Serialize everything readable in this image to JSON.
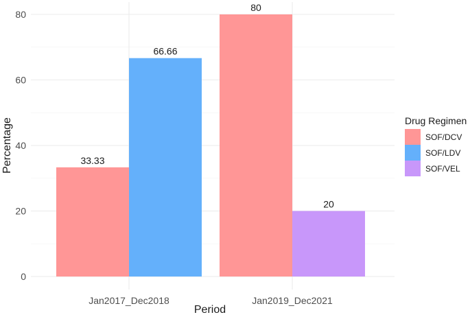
{
  "chart_data": {
    "type": "bar",
    "categories": [
      "Jan2017_Dec2018",
      "Jan2019_Dec2021"
    ],
    "series": [
      {
        "name": "SOF/DCV",
        "values": [
          33.33,
          80
        ],
        "labels": [
          "33.33",
          "80"
        ],
        "color": "#ff9696"
      },
      {
        "name": "SOF/LDV",
        "values": [
          66.66,
          null
        ],
        "labels": [
          "66.66",
          ""
        ],
        "color": "#64b0fb"
      },
      {
        "name": "SOF/VEL",
        "values": [
          null,
          20
        ],
        "labels": [
          "",
          "20"
        ],
        "color": "#c897fa"
      }
    ],
    "title": "",
    "xlabel": "Period",
    "ylabel": "Percentage",
    "ylim": [
      0,
      80
    ],
    "yticks": [
      0,
      20,
      40,
      60,
      80
    ],
    "legend": {
      "title": "Drug Regimen",
      "position": "right"
    },
    "grid": true
  }
}
